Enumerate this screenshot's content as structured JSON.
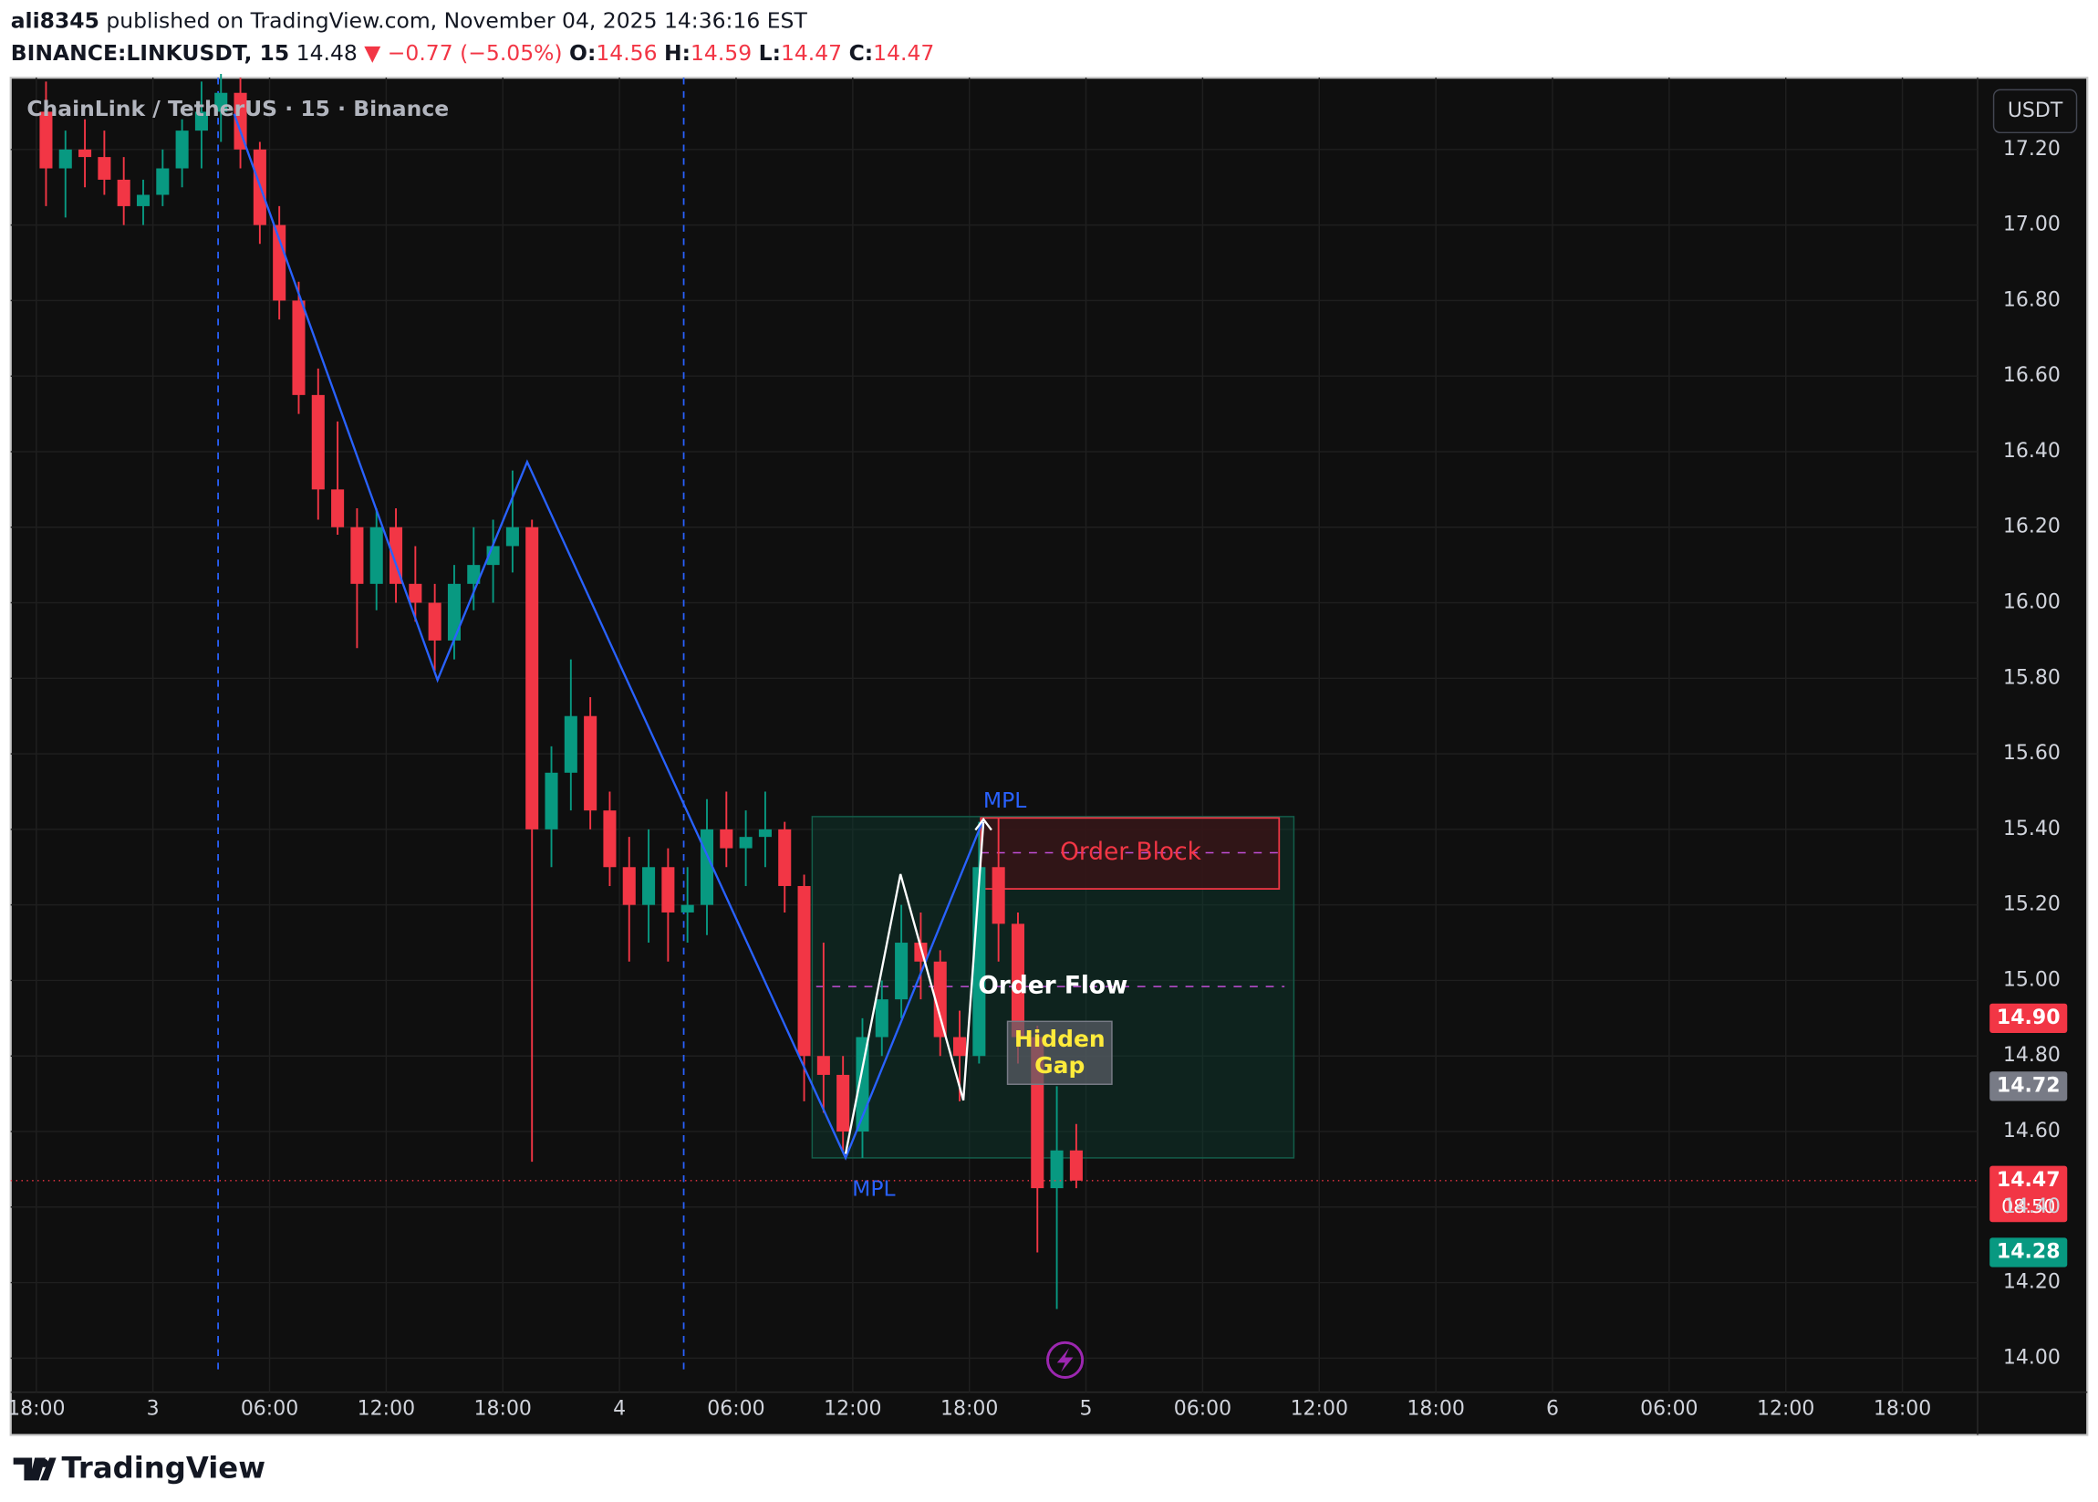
{
  "chart_data": {
    "type": "candlestick",
    "publisher": "ali8345",
    "published_text": "published on TradingView.com, November 04, 2025 14:36:16 EST",
    "symbol": "BINANCE:LINKUSDT, 15",
    "last": "14.48",
    "change": "▼ −0.77 (−5.05%)",
    "ohlc": [
      {
        "label": "O:",
        "value": "14.56"
      },
      {
        "label": "H:",
        "value": "14.59"
      },
      {
        "label": "L:",
        "value": "14.47"
      },
      {
        "label": "C:",
        "value": "14.47"
      }
    ],
    "title": "ChainLink / TetherUS · 15 · Binance",
    "currency": "USDT",
    "footer": "TradingView",
    "up_color": "#089981",
    "down_color": "#f23645",
    "grid": true,
    "x": [
      "2025-11-02T18:00",
      "2025-11-02T19:00",
      "2025-11-02T20:00",
      "2025-11-02T21:00",
      "2025-11-02T22:00",
      "2025-11-02T23:00",
      "2025-11-03T00:00",
      "2025-11-03T01:00",
      "2025-11-03T02:00",
      "2025-11-03T03:00",
      "2025-11-03T04:00",
      "2025-11-03T05:00",
      "2025-11-03T06:00",
      "2025-11-03T07:00",
      "2025-11-03T08:00",
      "2025-11-03T09:00",
      "2025-11-03T10:00",
      "2025-11-03T11:00",
      "2025-11-03T12:00",
      "2025-11-03T13:00",
      "2025-11-03T14:00",
      "2025-11-03T15:00",
      "2025-11-03T16:00",
      "2025-11-03T17:00",
      "2025-11-03T18:00",
      "2025-11-03T19:00",
      "2025-11-03T20:00",
      "2025-11-03T21:00",
      "2025-11-03T22:00",
      "2025-11-03T23:00",
      "2025-11-04T00:00",
      "2025-11-04T01:00",
      "2025-11-04T02:00",
      "2025-11-04T03:00",
      "2025-11-04T04:00",
      "2025-11-04T05:00",
      "2025-11-04T06:00",
      "2025-11-04T07:00",
      "2025-11-04T08:00",
      "2025-11-04T09:00",
      "2025-11-04T10:00",
      "2025-11-04T11:00",
      "2025-11-04T12:00",
      "2025-11-04T13:00",
      "2025-11-04T14:00",
      "2025-11-04T15:00",
      "2025-11-04T16:00",
      "2025-11-04T17:00",
      "2025-11-04T18:00",
      "2025-11-04T19:00",
      "2025-11-04T20:00",
      "2025-11-04T21:00",
      "2025-11-04T22:00",
      "2025-11-04T23:00"
    ],
    "open": [
      17.3,
      17.15,
      17.2,
      17.18,
      17.12,
      17.05,
      17.08,
      17.15,
      17.25,
      17.3,
      17.35,
      17.2,
      17.0,
      16.8,
      16.55,
      16.3,
      16.2,
      16.05,
      16.2,
      16.05,
      16.0,
      15.9,
      16.05,
      16.1,
      16.15,
      16.2,
      15.4,
      15.55,
      15.7,
      15.45,
      15.3,
      15.2,
      15.3,
      15.18,
      15.2,
      15.4,
      15.35,
      15.38,
      15.4,
      15.25,
      14.8,
      14.75,
      14.6,
      14.85,
      14.95,
      15.1,
      15.05,
      14.85,
      14.8,
      15.3,
      15.15,
      14.85,
      14.45,
      14.55
    ],
    "high": [
      17.38,
      17.25,
      17.28,
      17.25,
      17.18,
      17.12,
      17.2,
      17.28,
      17.38,
      17.4,
      17.39,
      17.22,
      17.05,
      16.85,
      16.62,
      16.48,
      16.25,
      16.25,
      16.25,
      16.15,
      16.05,
      16.1,
      16.2,
      16.22,
      16.35,
      16.22,
      15.62,
      15.85,
      15.75,
      15.5,
      15.38,
      15.4,
      15.35,
      15.3,
      15.48,
      15.5,
      15.45,
      15.5,
      15.42,
      15.28,
      15.1,
      14.8,
      14.9,
      15.0,
      15.2,
      15.18,
      15.08,
      14.92,
      15.42,
      15.43,
      15.18,
      14.88,
      14.72,
      14.62
    ],
    "low": [
      17.05,
      17.02,
      17.1,
      17.08,
      17.0,
      17.0,
      17.05,
      17.1,
      17.15,
      17.22,
      17.15,
      16.95,
      16.75,
      16.5,
      16.22,
      16.18,
      15.88,
      15.98,
      16.0,
      15.95,
      15.82,
      15.85,
      15.98,
      16.0,
      16.08,
      14.52,
      15.3,
      15.45,
      15.4,
      15.25,
      15.05,
      15.1,
      15.05,
      15.1,
      15.12,
      15.3,
      15.25,
      15.3,
      15.18,
      14.68,
      14.65,
      14.55,
      14.53,
      14.8,
      14.9,
      14.95,
      14.8,
      14.68,
      14.78,
      15.05,
      14.78,
      14.28,
      14.13,
      14.45
    ],
    "close": [
      17.15,
      17.2,
      17.18,
      17.12,
      17.05,
      17.08,
      17.15,
      17.25,
      17.3,
      17.35,
      17.2,
      17.0,
      16.8,
      16.55,
      16.3,
      16.2,
      16.05,
      16.2,
      16.05,
      16.0,
      15.9,
      16.05,
      16.1,
      16.15,
      16.2,
      15.4,
      15.55,
      15.7,
      15.45,
      15.3,
      15.2,
      15.3,
      15.18,
      15.2,
      15.4,
      15.35,
      15.38,
      15.4,
      15.25,
      14.8,
      14.75,
      14.6,
      14.85,
      14.95,
      15.1,
      15.05,
      14.85,
      14.8,
      15.3,
      15.15,
      14.85,
      14.45,
      14.55,
      14.47
    ],
    "xlim": [
      "2025-11-02T16:41",
      "2025-11-06T21:52"
    ],
    "ylim": [
      13.91,
      17.39
    ],
    "xticks": [
      {
        "value": "2025-11-02T18:00",
        "label": "18:00"
      },
      {
        "value": "2025-11-03T00:00",
        "label": "3"
      },
      {
        "value": "2025-11-03T06:00",
        "label": "06:00"
      },
      {
        "value": "2025-11-03T12:00",
        "label": "12:00"
      },
      {
        "value": "2025-11-03T18:00",
        "label": "18:00"
      },
      {
        "value": "2025-11-04T00:00",
        "label": "4"
      },
      {
        "value": "2025-11-04T06:00",
        "label": "06:00"
      },
      {
        "value": "2025-11-04T12:00",
        "label": "12:00"
      },
      {
        "value": "2025-11-04T18:00",
        "label": "18:00"
      },
      {
        "value": "2025-11-05T00:00",
        "label": "5"
      },
      {
        "value": "2025-11-05T06:00",
        "label": "06:00"
      },
      {
        "value": "2025-11-05T12:00",
        "label": "12:00"
      },
      {
        "value": "2025-11-05T18:00",
        "label": "18:00"
      },
      {
        "value": "2025-11-06T00:00",
        "label": "6"
      },
      {
        "value": "2025-11-06T06:00",
        "label": "06:00"
      },
      {
        "value": "2025-11-06T12:00",
        "label": "12:00"
      },
      {
        "value": "2025-11-06T18:00",
        "label": "18:00"
      }
    ],
    "yticks": [
      {
        "value": 14.0,
        "label": "14.00"
      },
      {
        "value": 14.2,
        "label": "14.20"
      },
      {
        "value": 14.4,
        "label": "14.40"
      },
      {
        "value": 14.6,
        "label": "14.60"
      },
      {
        "value": 14.8,
        "label": "14.80"
      },
      {
        "value": 15.0,
        "label": "15.00"
      },
      {
        "value": 15.2,
        "label": "15.20"
      },
      {
        "value": 15.4,
        "label": "15.40"
      },
      {
        "value": 15.6,
        "label": "15.60"
      },
      {
        "value": 15.8,
        "label": "15.80"
      },
      {
        "value": 16.0,
        "label": "16.00"
      },
      {
        "value": 16.2,
        "label": "16.20"
      },
      {
        "value": 16.4,
        "label": "16.40"
      },
      {
        "value": 16.6,
        "label": "16.60"
      },
      {
        "value": 16.8,
        "label": "16.80"
      },
      {
        "value": 17.0,
        "label": "17.00"
      },
      {
        "value": 17.2,
        "label": "17.20"
      }
    ],
    "price_tags": [
      {
        "value": 14.9,
        "label": "14.90",
        "color": "#f23645"
      },
      {
        "value": 14.72,
        "label": "14.72",
        "color": "#787b86"
      },
      {
        "value": 14.47,
        "label": "14.47",
        "countdown": "08:50",
        "color": "#f23645"
      },
      {
        "value": 14.28,
        "label": "14.28",
        "color": "#089981"
      }
    ],
    "annotations": [
      "MPL",
      "MPL",
      "Order Block",
      "Order Flow",
      "Hidden",
      "Gap"
    ]
  }
}
